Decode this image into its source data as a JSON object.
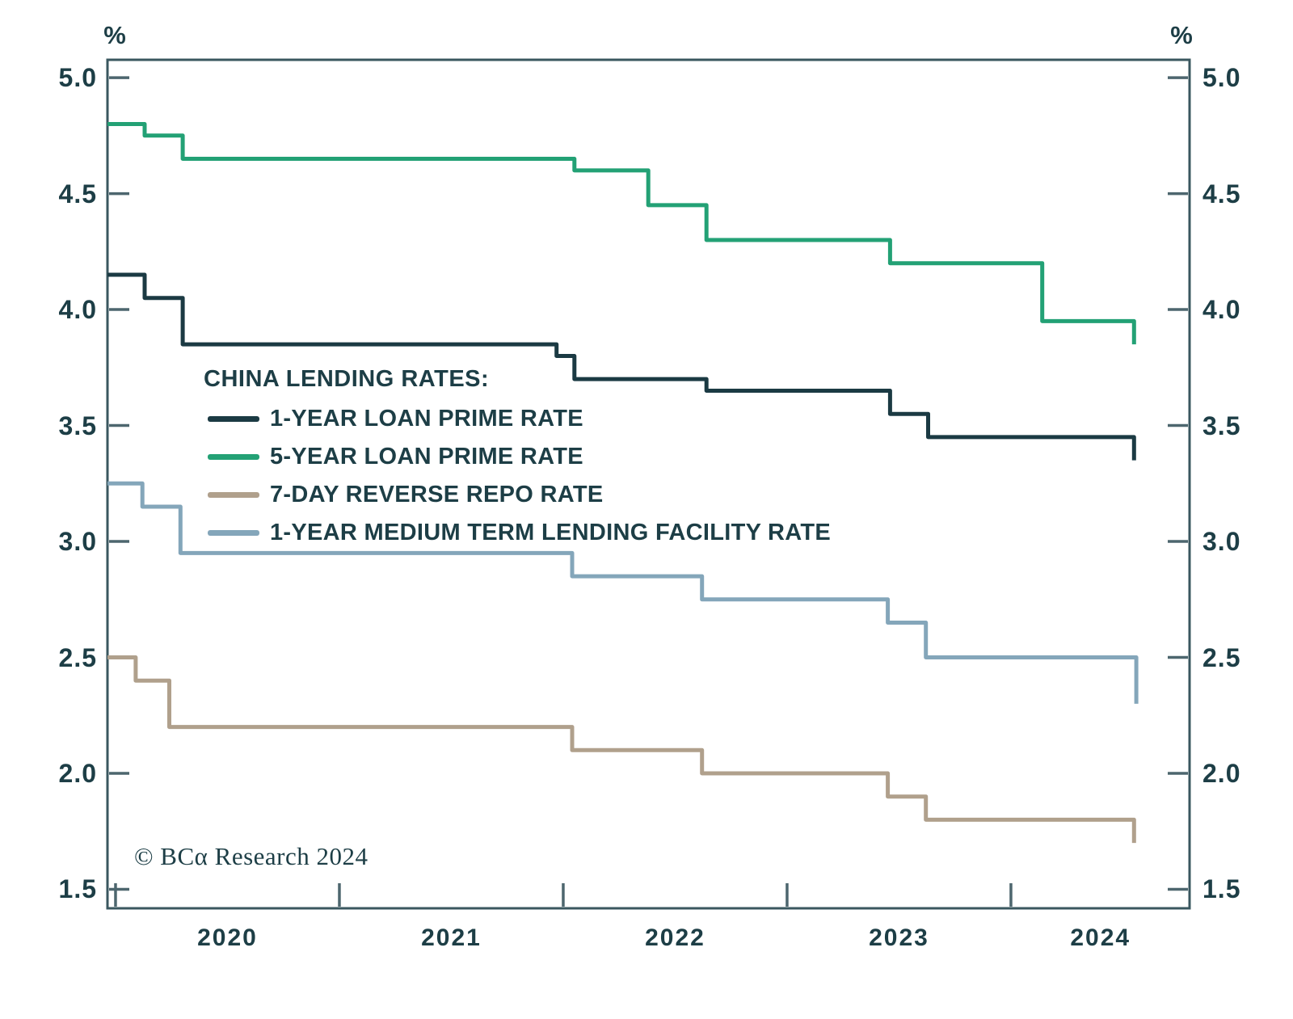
{
  "chart_data": {
    "type": "line",
    "line_style": "step-after",
    "title": "CHINA LENDING RATES:",
    "unit_left": "%",
    "unit_right": "%",
    "grid": false,
    "legend_position": "inside upper-left",
    "x_domain": [
      2019.964,
      2024.798
    ],
    "y_domain": [
      1.418,
      5.077
    ],
    "x_ticks": [
      2020,
      2021,
      2022,
      2023,
      2024
    ],
    "x_year_labels": [
      {
        "label": "2020",
        "center": 2020.5
      },
      {
        "label": "2021",
        "center": 2021.5
      },
      {
        "label": "2022",
        "center": 2022.5
      },
      {
        "label": "2023",
        "center": 2023.5
      },
      {
        "label": "2024",
        "center": 2024.4
      }
    ],
    "y_ticks": [
      {
        "value": 5.0,
        "label": "5.0"
      },
      {
        "value": 4.5,
        "label": "4.5"
      },
      {
        "value": 4.0,
        "label": "4.0"
      },
      {
        "value": 3.5,
        "label": "3.5"
      },
      {
        "value": 3.0,
        "label": "3.0"
      },
      {
        "value": 2.5,
        "label": "2.5"
      },
      {
        "value": 2.0,
        "label": "2.0"
      },
      {
        "value": 1.5,
        "label": "1.5"
      }
    ],
    "series": [
      {
        "name": "1-YEAR LOAN PRIME RATE",
        "color": "#1b3a43",
        "points": [
          [
            2019.964,
            4.15
          ],
          [
            2020.13,
            4.05
          ],
          [
            2020.3,
            3.85
          ],
          [
            2021.97,
            3.8
          ],
          [
            2022.05,
            3.7
          ],
          [
            2022.64,
            3.65
          ],
          [
            2023.46,
            3.55
          ],
          [
            2023.63,
            3.45
          ],
          [
            2024.55,
            3.35
          ]
        ]
      },
      {
        "name": "5-YEAR LOAN PRIME RATE",
        "color": "#23a175",
        "points": [
          [
            2019.964,
            4.8
          ],
          [
            2020.13,
            4.75
          ],
          [
            2020.3,
            4.65
          ],
          [
            2022.05,
            4.6
          ],
          [
            2022.38,
            4.45
          ],
          [
            2022.64,
            4.3
          ],
          [
            2023.46,
            4.2
          ],
          [
            2024.14,
            3.95
          ],
          [
            2024.55,
            3.85
          ]
        ]
      },
      {
        "name": "7-DAY REVERSE REPO RATE",
        "color": "#b0a08c",
        "points": [
          [
            2019.964,
            2.5
          ],
          [
            2020.09,
            2.4
          ],
          [
            2020.24,
            2.2
          ],
          [
            2022.04,
            2.1
          ],
          [
            2022.62,
            2.0
          ],
          [
            2023.45,
            1.9
          ],
          [
            2023.62,
            1.8
          ],
          [
            2024.55,
            1.7
          ]
        ]
      },
      {
        "name": "1-YEAR MEDIUM TERM LENDING FACILITY RATE",
        "color": "#84a6ba",
        "points": [
          [
            2019.964,
            3.25
          ],
          [
            2020.12,
            3.15
          ],
          [
            2020.29,
            2.95
          ],
          [
            2022.04,
            2.85
          ],
          [
            2022.62,
            2.75
          ],
          [
            2023.45,
            2.65
          ],
          [
            2023.62,
            2.5
          ],
          [
            2024.56,
            2.3
          ]
        ]
      }
    ]
  },
  "footer": {
    "copyright": "© BCα Research 2024"
  },
  "style": {
    "background": "#ffffff",
    "text_color": "#1d3e46",
    "frame_color": "#3a575f",
    "tick_color": "#4d666e",
    "line_width": 5
  }
}
